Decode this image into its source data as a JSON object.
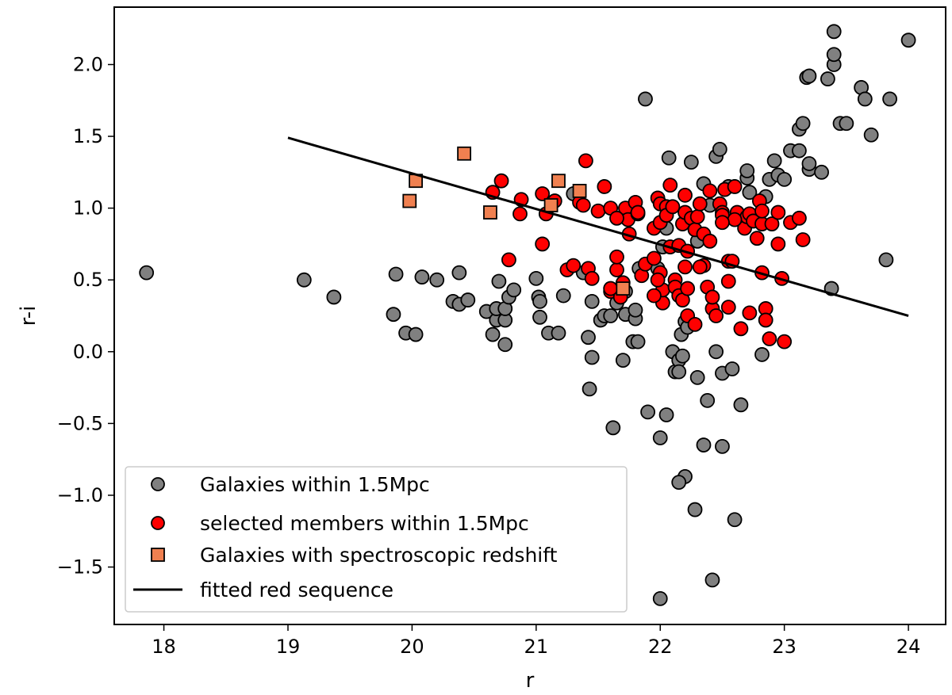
{
  "chart_data": {
    "type": "scatter",
    "xlabel": "r",
    "ylabel": "r-i",
    "xlim": [
      17.6,
      24.3
    ],
    "ylim": [
      -1.9,
      2.4
    ],
    "xticks": [
      18,
      19,
      20,
      21,
      22,
      23,
      24
    ],
    "yticks": [
      -1.5,
      -1.0,
      -0.5,
      0.0,
      0.5,
      1.0,
      1.5,
      2.0
    ],
    "ytick_labels": [
      "−1.5",
      "−1.0",
      "−0.5",
      "0.0",
      "0.5",
      "1.0",
      "1.5",
      "2.0"
    ],
    "grid": false,
    "legend_position": "lower-left",
    "series": [
      {
        "name": "Galaxies within 1.5Mpc",
        "marker": "circle",
        "color": "#808080",
        "points": [
          [
            17.86,
            0.55
          ],
          [
            19.13,
            0.5
          ],
          [
            19.37,
            0.38
          ],
          [
            19.85,
            0.26
          ],
          [
            19.87,
            0.54
          ],
          [
            19.95,
            0.13
          ],
          [
            20.03,
            0.12
          ],
          [
            20.08,
            0.52
          ],
          [
            20.2,
            0.5
          ],
          [
            20.33,
            0.35
          ],
          [
            20.38,
            0.33
          ],
          [
            20.38,
            0.55
          ],
          [
            20.45,
            0.36
          ],
          [
            20.6,
            0.28
          ],
          [
            20.65,
            0.12
          ],
          [
            20.68,
            0.22
          ],
          [
            20.68,
            0.3
          ],
          [
            20.7,
            0.49
          ],
          [
            20.75,
            0.05
          ],
          [
            20.75,
            0.22
          ],
          [
            20.75,
            0.3
          ],
          [
            20.78,
            0.38
          ],
          [
            20.82,
            0.43
          ],
          [
            21.0,
            0.51
          ],
          [
            21.02,
            0.38
          ],
          [
            21.03,
            0.35
          ],
          [
            21.03,
            0.24
          ],
          [
            21.1,
            0.13
          ],
          [
            21.18,
            0.13
          ],
          [
            21.22,
            0.39
          ],
          [
            21.3,
            1.1
          ],
          [
            21.38,
            0.55
          ],
          [
            21.42,
            0.1
          ],
          [
            21.43,
            -0.26
          ],
          [
            21.45,
            0.35
          ],
          [
            21.45,
            -0.04
          ],
          [
            21.52,
            0.22
          ],
          [
            21.55,
            0.25
          ],
          [
            21.6,
            0.25
          ],
          [
            21.62,
            -0.53
          ],
          [
            21.65,
            0.34
          ],
          [
            21.7,
            -0.06
          ],
          [
            21.72,
            0.26
          ],
          [
            21.72,
            0.42
          ],
          [
            21.78,
            0.07
          ],
          [
            21.8,
            0.23
          ],
          [
            21.8,
            0.29
          ],
          [
            21.82,
            0.07
          ],
          [
            21.88,
            1.76
          ],
          [
            21.9,
            -0.42
          ],
          [
            21.98,
            0.58
          ],
          [
            22.02,
            0.73
          ],
          [
            22.05,
            0.86
          ],
          [
            22.07,
            1.35
          ],
          [
            22.05,
            -0.44
          ],
          [
            22.1,
            0.0
          ],
          [
            22.12,
            -0.14
          ],
          [
            22.15,
            -0.06
          ],
          [
            22.15,
            -0.14
          ],
          [
            22.17,
            0.12
          ],
          [
            22.18,
            -0.03
          ],
          [
            22.2,
            0.21
          ],
          [
            22.2,
            -0.87
          ],
          [
            22.22,
            0.17
          ],
          [
            22.25,
            1.32
          ],
          [
            22.28,
            -1.1
          ],
          [
            22.3,
            0.77
          ],
          [
            22.3,
            -0.18
          ],
          [
            22.35,
            1.17
          ],
          [
            22.35,
            -0.65
          ],
          [
            22.38,
            -0.34
          ],
          [
            22.4,
            1.02
          ],
          [
            22.42,
            -1.59
          ],
          [
            22.45,
            1.36
          ],
          [
            22.45,
            0.0
          ],
          [
            22.48,
            1.41
          ],
          [
            22.5,
            -0.15
          ],
          [
            22.55,
            1.15
          ],
          [
            22.58,
            -0.12
          ],
          [
            22.6,
            -1.17
          ],
          [
            22.65,
            -0.37
          ],
          [
            22.7,
            1.21
          ],
          [
            22.7,
            1.26
          ],
          [
            22.72,
            1.11
          ],
          [
            22.85,
            1.08
          ],
          [
            22.88,
            1.2
          ],
          [
            22.92,
            1.33
          ],
          [
            22.95,
            1.23
          ],
          [
            23.0,
            1.2
          ],
          [
            23.05,
            1.4
          ],
          [
            23.12,
            1.4
          ],
          [
            23.12,
            1.55
          ],
          [
            23.15,
            1.59
          ],
          [
            23.18,
            1.91
          ],
          [
            23.2,
            1.92
          ],
          [
            23.2,
            1.27
          ],
          [
            23.2,
            1.31
          ],
          [
            23.3,
            1.25
          ],
          [
            23.35,
            1.9
          ],
          [
            23.4,
            2.0
          ],
          [
            23.4,
            2.07
          ],
          [
            23.4,
            2.23
          ],
          [
            23.45,
            1.59
          ],
          [
            23.5,
            1.59
          ],
          [
            23.62,
            1.84
          ],
          [
            23.65,
            1.76
          ],
          [
            23.7,
            1.51
          ],
          [
            23.82,
            0.64
          ],
          [
            23.85,
            1.76
          ],
          [
            24.0,
            2.17
          ],
          [
            23.38,
            0.44
          ],
          [
            22.0,
            -1.72
          ],
          [
            22.15,
            -0.91
          ],
          [
            22.5,
            -0.66
          ],
          [
            22.0,
            -0.6
          ],
          [
            21.83,
            0.58
          ],
          [
            22.82,
            -0.02
          ]
        ]
      },
      {
        "name": "selected members within 1.5Mpc",
        "marker": "circle",
        "color": "#ff0000",
        "points": [
          [
            20.65,
            1.11
          ],
          [
            20.72,
            1.19
          ],
          [
            20.78,
            0.64
          ],
          [
            20.87,
            0.96
          ],
          [
            20.88,
            1.06
          ],
          [
            21.05,
            1.1
          ],
          [
            21.05,
            0.75
          ],
          [
            21.08,
            0.96
          ],
          [
            21.15,
            1.05
          ],
          [
            21.25,
            0.57
          ],
          [
            21.3,
            0.6
          ],
          [
            21.35,
            1.04
          ],
          [
            21.38,
            1.02
          ],
          [
            21.4,
            1.33
          ],
          [
            21.42,
            0.58
          ],
          [
            21.45,
            0.51
          ],
          [
            21.5,
            0.98
          ],
          [
            21.55,
            1.15
          ],
          [
            21.6,
            1.0
          ],
          [
            21.6,
            0.42
          ],
          [
            21.65,
            0.57
          ],
          [
            21.65,
            0.66
          ],
          [
            21.68,
            0.38
          ],
          [
            21.7,
            0.48
          ],
          [
            21.72,
            1.0
          ],
          [
            21.74,
            0.92
          ],
          [
            21.75,
            0.82
          ],
          [
            21.8,
            1.04
          ],
          [
            21.82,
            0.96
          ],
          [
            21.82,
            0.97
          ],
          [
            21.85,
            0.53
          ],
          [
            21.88,
            0.61
          ],
          [
            21.95,
            0.65
          ],
          [
            21.95,
            0.86
          ],
          [
            21.98,
            1.07
          ],
          [
            22.0,
            1.03
          ],
          [
            22.0,
            0.9
          ],
          [
            22.0,
            0.55
          ],
          [
            22.02,
            0.34
          ],
          [
            22.02,
            0.43
          ],
          [
            22.05,
            1.01
          ],
          [
            22.05,
            0.95
          ],
          [
            22.08,
            1.16
          ],
          [
            22.08,
            0.73
          ],
          [
            22.1,
            1.01
          ],
          [
            22.12,
            0.5
          ],
          [
            22.12,
            0.45
          ],
          [
            22.15,
            0.74
          ],
          [
            22.15,
            0.39
          ],
          [
            22.18,
            0.89
          ],
          [
            22.18,
            0.36
          ],
          [
            22.2,
            1.09
          ],
          [
            22.2,
            0.97
          ],
          [
            22.22,
            0.25
          ],
          [
            22.22,
            0.44
          ],
          [
            22.22,
            0.7
          ],
          [
            22.25,
            0.93
          ],
          [
            22.28,
            0.85
          ],
          [
            22.3,
            0.94
          ],
          [
            22.32,
            1.03
          ],
          [
            22.35,
            0.6
          ],
          [
            22.35,
            0.82
          ],
          [
            22.38,
            0.45
          ],
          [
            22.4,
            1.12
          ],
          [
            22.4,
            0.77
          ],
          [
            22.42,
            0.3
          ],
          [
            22.42,
            0.38
          ],
          [
            22.45,
            0.25
          ],
          [
            22.48,
            1.03
          ],
          [
            22.5,
            0.97
          ],
          [
            22.5,
            0.95
          ],
          [
            22.52,
            1.13
          ],
          [
            22.55,
            0.31
          ],
          [
            22.55,
            0.49
          ],
          [
            22.55,
            0.63
          ],
          [
            22.58,
            0.63
          ],
          [
            22.6,
            1.15
          ],
          [
            22.62,
            0.97
          ],
          [
            22.65,
            0.16
          ],
          [
            22.68,
            0.86
          ],
          [
            22.7,
            0.94
          ],
          [
            22.72,
            0.96
          ],
          [
            22.72,
            0.27
          ],
          [
            22.75,
            0.91
          ],
          [
            22.78,
            0.79
          ],
          [
            22.8,
            1.05
          ],
          [
            22.82,
            0.89
          ],
          [
            22.82,
            0.98
          ],
          [
            22.82,
            0.55
          ],
          [
            22.85,
            0.3
          ],
          [
            22.85,
            0.22
          ],
          [
            22.88,
            0.09
          ],
          [
            22.9,
            0.89
          ],
          [
            22.95,
            0.75
          ],
          [
            22.95,
            0.97
          ],
          [
            22.98,
            0.51
          ],
          [
            23.0,
            0.07
          ],
          [
            23.05,
            0.9
          ],
          [
            23.12,
            0.93
          ],
          [
            23.15,
            0.78
          ],
          [
            21.95,
            0.39
          ],
          [
            21.98,
            0.5
          ],
          [
            22.28,
            0.19
          ],
          [
            22.32,
            0.59
          ],
          [
            22.6,
            0.92
          ],
          [
            22.2,
            0.59
          ],
          [
            21.6,
            0.44
          ],
          [
            21.65,
            0.93
          ],
          [
            22.5,
            0.9
          ]
        ]
      },
      {
        "name": "Galaxies with spectroscopic redshift",
        "marker": "square",
        "color": "#f08050",
        "points": [
          [
            20.03,
            1.19
          ],
          [
            19.98,
            1.05
          ],
          [
            20.42,
            1.38
          ],
          [
            20.63,
            0.97
          ],
          [
            21.12,
            1.02
          ],
          [
            21.18,
            1.19
          ],
          [
            21.35,
            1.12
          ],
          [
            21.7,
            0.44
          ]
        ]
      },
      {
        "name": "fitted red sequence",
        "marker": "line",
        "color": "#000000",
        "x": [
          19.0,
          24.0
        ],
        "y": [
          1.49,
          0.25
        ]
      }
    ]
  }
}
